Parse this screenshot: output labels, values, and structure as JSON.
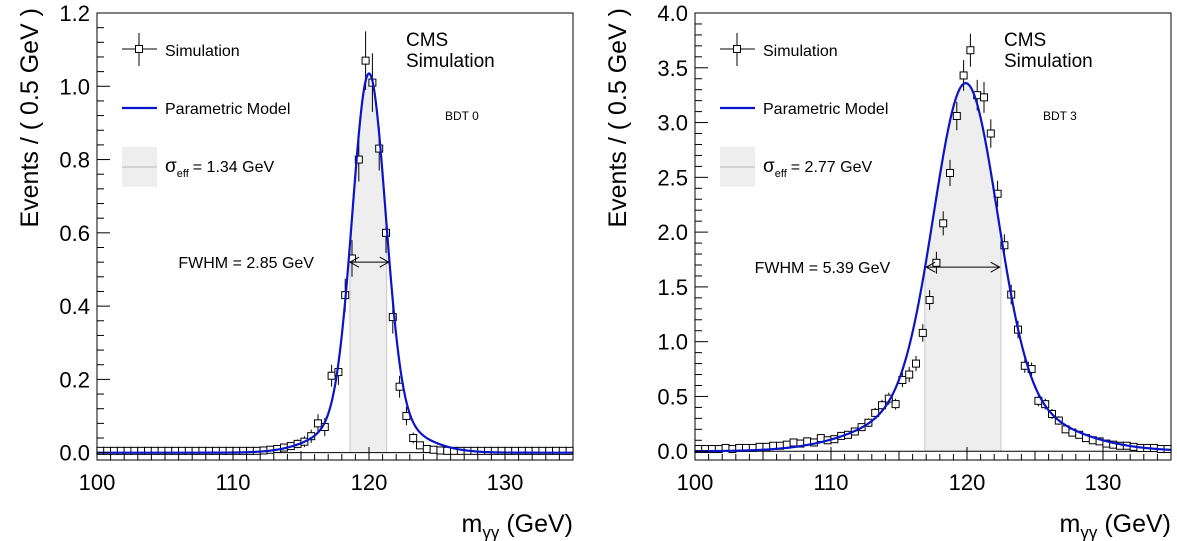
{
  "chart_data": [
    {
      "type": "scatter",
      "ylabel": "Events / ( 0.5 GeV )",
      "xlabel_main": "m",
      "xlabel_sub": "γγ",
      "xlabel_unit": "(GeV)",
      "xlim": [
        100,
        135
      ],
      "ylim": [
        -0.02,
        1.2
      ],
      "xticks": [
        100,
        110,
        120,
        130
      ],
      "yticks": [
        0.0,
        0.2,
        0.4,
        0.6,
        0.8,
        1.0,
        1.2
      ],
      "ytick_labels": [
        "0.0",
        "0.2",
        "0.4",
        "0.6",
        "0.8",
        "1.0",
        "1.2"
      ],
      "legend": {
        "simulation": "Simulation",
        "model": "Parametric Model",
        "sigma_symbol": "σ",
        "sigma_sub": "eff",
        "sigma_value": "= 1.34 GeV"
      },
      "cms_label": [
        "CMS",
        "Simulation"
      ],
      "category_label": "BDT 0",
      "fwhm_label": "FWHM = 2.85 GeV",
      "fwhm_range": [
        118.6,
        121.45
      ],
      "fwhm_y": 0.52,
      "sigma_eff_range": [
        118.6,
        121.3
      ],
      "model": {
        "peak": 120.0,
        "amplitude": 1.035,
        "sigma": 1.21,
        "tail_fraction": 0.1,
        "tail_sigma": 3.0
      },
      "series": [
        {
          "name": "Simulation",
          "x": [
            100.25,
            100.75,
            101.25,
            101.75,
            102.25,
            102.75,
            103.25,
            103.75,
            104.25,
            104.75,
            105.25,
            105.75,
            106.25,
            106.75,
            107.25,
            107.75,
            108.25,
            108.75,
            109.25,
            109.75,
            110.25,
            110.75,
            111.25,
            111.75,
            112.25,
            112.75,
            113.25,
            113.75,
            114.25,
            114.75,
            115.25,
            115.75,
            116.25,
            116.75,
            117.25,
            117.75,
            118.25,
            118.75,
            119.25,
            119.75,
            120.25,
            120.75,
            121.25,
            121.75,
            122.25,
            122.75,
            123.25,
            123.75,
            124.25,
            124.75,
            125.25,
            125.75,
            126.25,
            126.75,
            127.25,
            127.75,
            128.25,
            128.75,
            129.25,
            129.75,
            130.25,
            130.75,
            131.25,
            131.75,
            132.25,
            132.75,
            133.25,
            133.75,
            134.25,
            134.75
          ],
          "y": [
            0.005,
            0.005,
            0.005,
            0.005,
            0.005,
            0.005,
            0.005,
            0.005,
            0.005,
            0.005,
            0.005,
            0.005,
            0.005,
            0.005,
            0.005,
            0.005,
            0.005,
            0.005,
            0.005,
            0.005,
            0.005,
            0.005,
            0.005,
            0.005,
            0.006,
            0.008,
            0.01,
            0.014,
            0.018,
            0.024,
            0.03,
            0.045,
            0.08,
            0.07,
            0.21,
            0.22,
            0.43,
            0.53,
            0.8,
            1.07,
            1.01,
            0.83,
            0.6,
            0.37,
            0.18,
            0.1,
            0.04,
            0.02,
            0.01,
            0.008,
            0.006,
            0.005,
            0.005,
            0.005,
            0.005,
            0.005,
            0.005,
            0.005,
            0.005,
            0.005,
            0.005,
            0.005,
            0.005,
            0.005,
            0.005,
            0.005,
            0.005,
            0.005,
            0.005,
            0.005
          ],
          "err": [
            0.004,
            0.004,
            0.004,
            0.004,
            0.004,
            0.004,
            0.004,
            0.004,
            0.004,
            0.004,
            0.004,
            0.004,
            0.004,
            0.004,
            0.004,
            0.004,
            0.004,
            0.004,
            0.004,
            0.004,
            0.004,
            0.004,
            0.004,
            0.004,
            0.005,
            0.006,
            0.007,
            0.008,
            0.01,
            0.012,
            0.015,
            0.018,
            0.025,
            0.025,
            0.03,
            0.035,
            0.045,
            0.05,
            0.06,
            0.08,
            0.08,
            0.06,
            0.055,
            0.045,
            0.03,
            0.025,
            0.015,
            0.01,
            0.008,
            0.006,
            0.005,
            0.004,
            0.004,
            0.004,
            0.004,
            0.004,
            0.004,
            0.004,
            0.004,
            0.004,
            0.004,
            0.004,
            0.004,
            0.004,
            0.004,
            0.004,
            0.004,
            0.004,
            0.004,
            0.004
          ]
        }
      ]
    },
    {
      "type": "scatter",
      "ylabel": "Events / ( 0.5 GeV )",
      "xlabel_main": "m",
      "xlabel_sub": "γγ",
      "xlabel_unit": "(GeV)",
      "xlim": [
        100,
        135
      ],
      "ylim": [
        -0.08,
        4.0
      ],
      "xticks": [
        100,
        110,
        120,
        130
      ],
      "yticks": [
        0.0,
        0.5,
        1.0,
        1.5,
        2.0,
        2.5,
        3.0,
        3.5,
        4.0
      ],
      "ytick_labels": [
        "0.0",
        "0.5",
        "1.0",
        "1.5",
        "2.0",
        "2.5",
        "3.0",
        "3.5",
        "4.0"
      ],
      "legend": {
        "simulation": "Simulation",
        "model": "Parametric Model",
        "sigma_symbol": "σ",
        "sigma_sub": "eff",
        "sigma_value": "= 2.77 GeV"
      },
      "cms_label": [
        "CMS",
        "Simulation"
      ],
      "category_label": "BDT 3",
      "fwhm_label": "FWHM = 5.39 GeV",
      "fwhm_range": [
        117.0,
        122.4
      ],
      "fwhm_y": 1.68,
      "sigma_eff_range": [
        116.9,
        122.5
      ],
      "model": {
        "peak": 119.9,
        "amplitude": 3.36,
        "sigma": 2.3,
        "tail_fraction": 0.16,
        "tail_sigma": 5.5
      },
      "series": [
        {
          "name": "Simulation",
          "x": [
            100.25,
            100.75,
            101.25,
            101.75,
            102.25,
            102.75,
            103.25,
            103.75,
            104.25,
            104.75,
            105.25,
            105.75,
            106.25,
            106.75,
            107.25,
            107.75,
            108.25,
            108.75,
            109.25,
            109.75,
            110.25,
            110.75,
            111.25,
            111.75,
            112.25,
            112.75,
            113.25,
            113.75,
            114.25,
            114.75,
            115.25,
            115.75,
            116.25,
            116.75,
            117.25,
            117.75,
            118.25,
            118.75,
            119.25,
            119.75,
            120.25,
            120.75,
            121.25,
            121.75,
            122.25,
            122.75,
            123.25,
            123.75,
            124.25,
            124.75,
            125.25,
            125.75,
            126.25,
            126.75,
            127.25,
            127.75,
            128.25,
            128.75,
            129.25,
            129.75,
            130.25,
            130.75,
            131.25,
            131.75,
            132.25,
            132.75,
            133.25,
            133.75,
            134.25,
            134.75
          ],
          "y": [
            0.02,
            0.02,
            0.02,
            0.02,
            0.03,
            0.02,
            0.03,
            0.03,
            0.03,
            0.04,
            0.04,
            0.05,
            0.05,
            0.06,
            0.08,
            0.07,
            0.09,
            0.08,
            0.12,
            0.1,
            0.11,
            0.14,
            0.15,
            0.18,
            0.22,
            0.26,
            0.35,
            0.42,
            0.48,
            0.43,
            0.65,
            0.7,
            0.8,
            1.08,
            1.38,
            1.72,
            2.08,
            2.54,
            3.06,
            3.43,
            3.66,
            3.25,
            3.23,
            2.9,
            2.35,
            1.88,
            1.43,
            1.11,
            0.78,
            0.75,
            0.46,
            0.43,
            0.34,
            0.28,
            0.2,
            0.17,
            0.15,
            0.12,
            0.1,
            0.09,
            0.07,
            0.06,
            0.05,
            0.05,
            0.04,
            0.03,
            0.03,
            0.03,
            0.02,
            0.02
          ],
          "err": [
            0.012,
            0.012,
            0.012,
            0.012,
            0.014,
            0.012,
            0.014,
            0.014,
            0.014,
            0.016,
            0.016,
            0.018,
            0.018,
            0.02,
            0.022,
            0.02,
            0.024,
            0.022,
            0.026,
            0.024,
            0.025,
            0.028,
            0.03,
            0.032,
            0.035,
            0.04,
            0.045,
            0.05,
            0.055,
            0.05,
            0.065,
            0.07,
            0.07,
            0.08,
            0.09,
            0.1,
            0.11,
            0.12,
            0.13,
            0.14,
            0.15,
            0.14,
            0.14,
            0.13,
            0.12,
            0.1,
            0.09,
            0.08,
            0.065,
            0.06,
            0.05,
            0.05,
            0.045,
            0.04,
            0.035,
            0.032,
            0.03,
            0.028,
            0.025,
            0.024,
            0.02,
            0.018,
            0.016,
            0.016,
            0.014,
            0.013,
            0.013,
            0.013,
            0.012,
            0.012
          ]
        }
      ]
    }
  ]
}
